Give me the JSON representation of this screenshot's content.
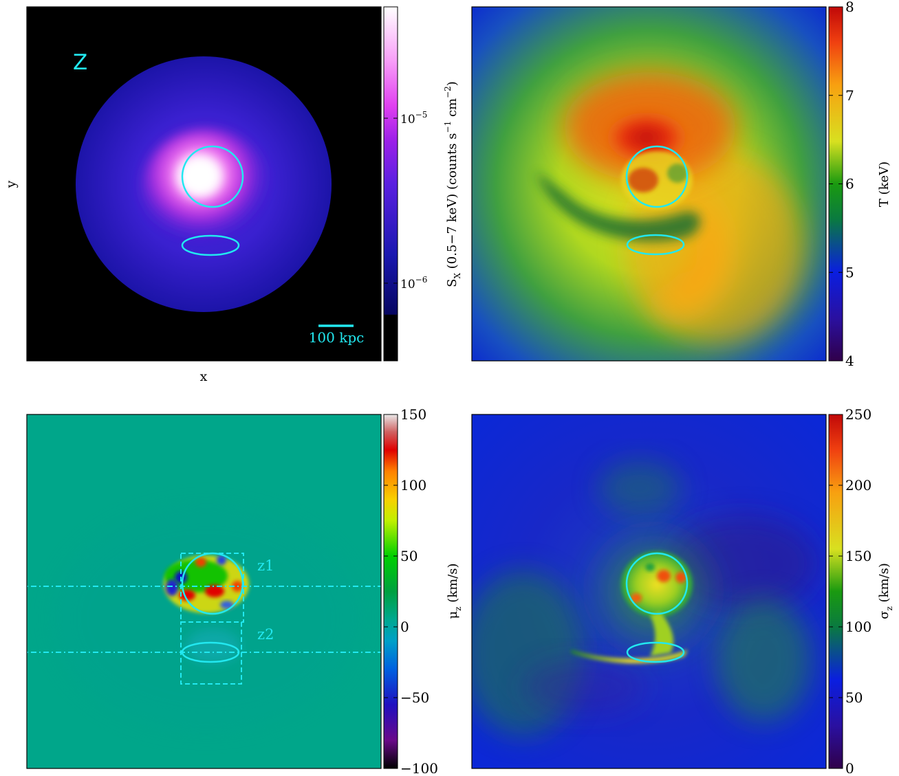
{
  "chart_data": [
    {
      "type": "heatmap",
      "panel": "top-left",
      "quantity": "X-ray surface brightness",
      "label": "Z",
      "xlabel": "x",
      "ylabel": "y",
      "scalebar_label": "100 kpc",
      "colorbar": {
        "label": "S",
        "label_sub": "X",
        "label_rest": "  (0.5−7 keV) (counts s",
        "label_exp1": "−1",
        "label_mid": " cm",
        "label_exp2": "−2",
        "label_end": ")",
        "scale": "log",
        "ticks": [
          {
            "value": 1e-05,
            "base": "10",
            "exp": "−5"
          },
          {
            "value": 1e-06,
            "base": "10",
            "exp": "−6"
          }
        ],
        "colormap": "black-navy-blue-magenta-white"
      }
    },
    {
      "type": "heatmap",
      "panel": "top-right",
      "quantity": "temperature",
      "colorbar": {
        "label": "T (keV)",
        "range": [
          4,
          8
        ],
        "ticks": [
          4,
          5,
          6,
          7,
          8
        ],
        "colormap": "purple-blue-green-yellow-orange-red"
      }
    },
    {
      "type": "heatmap",
      "panel": "bottom-left",
      "quantity": "line-of-sight velocity",
      "region_labels": [
        "z1",
        "z2"
      ],
      "colorbar": {
        "label": "μ",
        "label_sub": "z",
        "label_rest": " (km/s)",
        "range": [
          -100,
          150
        ],
        "ticks": [
          -100,
          -50,
          0,
          50,
          100,
          150
        ],
        "tick_labels": [
          "−100",
          "−50",
          "0",
          "50",
          "100",
          "150"
        ],
        "colormap": "nipy_spectral"
      }
    },
    {
      "type": "heatmap",
      "panel": "bottom-right",
      "quantity": "velocity dispersion",
      "colorbar": {
        "label": "σ",
        "label_sub": "z",
        "label_rest": " (km/s)",
        "range": [
          0,
          250
        ],
        "ticks": [
          0,
          50,
          100,
          150,
          200,
          250
        ],
        "colormap": "purple-blue-green-yellow-orange-red"
      }
    }
  ]
}
